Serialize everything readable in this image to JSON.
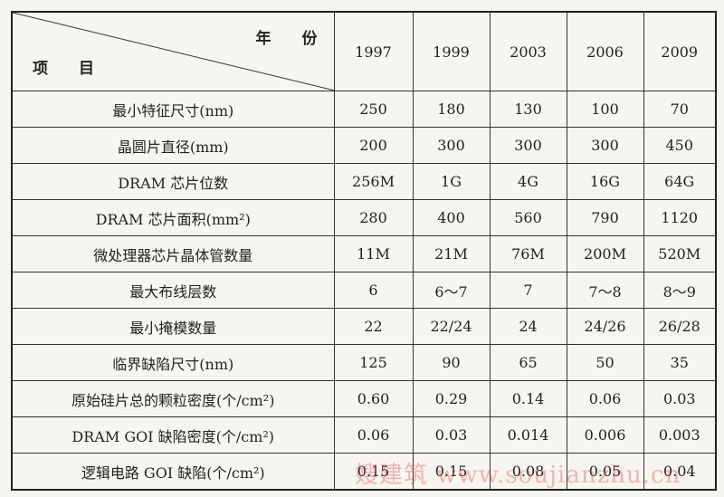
{
  "table": {
    "corner": {
      "top": "年　　份",
      "bottom": "项　　目"
    },
    "years": [
      "1997",
      "1999",
      "2003",
      "2006",
      "2009"
    ],
    "rows": [
      [
        "最小特征尺寸(nm)",
        "250",
        "180",
        "130",
        "100",
        "70"
      ],
      [
        "晶圆片直径(mm)",
        "200",
        "300",
        "300",
        "300",
        "450"
      ],
      [
        "DRAM 芯片位数",
        "256M",
        "1G",
        "4G",
        "16G",
        "64G"
      ],
      [
        "DRAM 芯片面积(mm²)",
        "280",
        "400",
        "560",
        "790",
        "1120"
      ],
      [
        "微处理器芯片晶体管数量",
        "11M",
        "21M",
        "76M",
        "200M",
        "520M"
      ],
      [
        "最大布线层数",
        "6",
        "6～7",
        "7",
        "7～8",
        "8～9"
      ],
      [
        "最小掩模数量",
        "22",
        "22/24",
        "24",
        "24/26",
        "26/28"
      ],
      [
        "临界缺陷尺寸(nm)",
        "125",
        "90",
        "65",
        "50",
        "35"
      ],
      [
        "原始硅片总的颗粒密度(个/cm²)",
        "0.60",
        "0.29",
        "0.14",
        "0.06",
        "0.03"
      ],
      [
        "DRAM GOI 缺陷密度(个/cm²)",
        "0.06",
        "0.03",
        "0.014",
        "0.006",
        "0.003"
      ],
      [
        "逻辑电路 GOI 缺陷(个/cm²)",
        "0.15",
        "0.15",
        "0.08",
        "0.05",
        "0.04"
      ]
    ]
  },
  "watermark": "嫂建筑 www.soujianzhu.cn"
}
